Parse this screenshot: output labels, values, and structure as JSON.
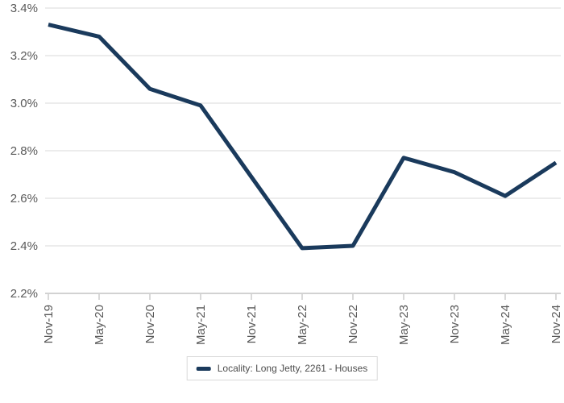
{
  "chart_data": {
    "type": "line",
    "title": "",
    "categories": [
      "Nov-19",
      "May-20",
      "Nov-20",
      "May-21",
      "Nov-21",
      "May-22",
      "Nov-22",
      "May-23",
      "Nov-23",
      "May-24",
      "Nov-24"
    ],
    "series": [
      {
        "name": "Locality: Long Jetty, 2261 - Houses",
        "values": [
          3.33,
          3.28,
          3.06,
          2.99,
          2.69,
          2.39,
          2.4,
          2.77,
          2.71,
          2.61,
          2.75
        ]
      }
    ],
    "y_tick_labels": [
      "3.4%",
      "3.2%",
      "3.0%",
      "2.8%",
      "2.6%",
      "2.4%",
      "2.2%"
    ],
    "y_tick_values": [
      3.4,
      3.2,
      3.0,
      2.8,
      2.6,
      2.4,
      2.2
    ],
    "ylim": [
      2.2,
      3.4
    ],
    "unit": "%",
    "grid": true,
    "legend_position": "bottom",
    "xlabel": "",
    "ylabel": ""
  },
  "legend": {
    "items": [
      {
        "label": "Locality: Long Jetty, 2261 - Houses",
        "swatch_color": "#1A3A5C"
      }
    ]
  },
  "colors": {
    "line": "#1A3A5C",
    "grid": "#d9d9d9",
    "axis": "#a6a6a6",
    "tick": "#b3b3b3",
    "axis_label": "#595959",
    "legend_text": "#4d4d4d",
    "legend_border": "#d9d9d9",
    "background": "#ffffff"
  }
}
